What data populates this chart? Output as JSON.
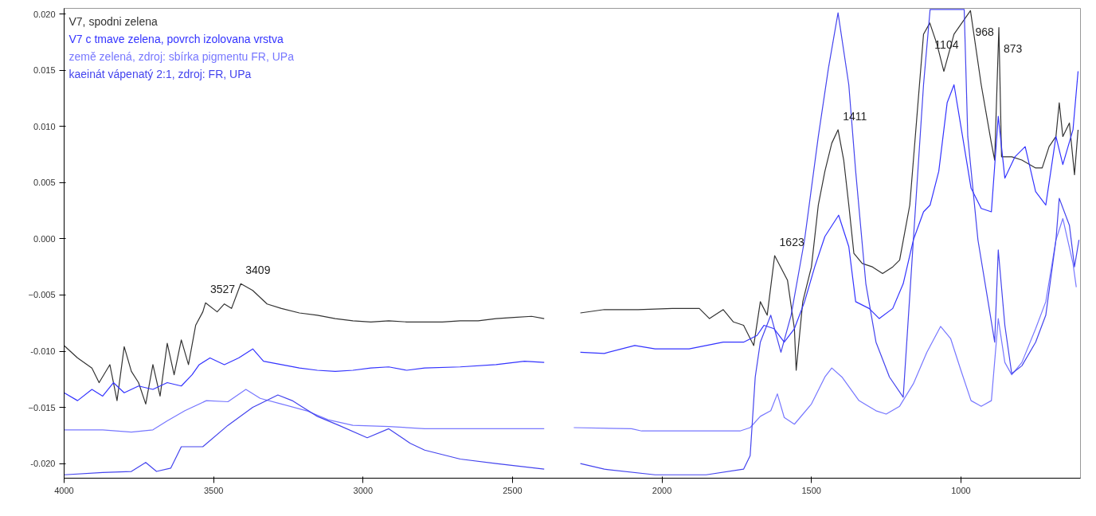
{
  "chart_data": {
    "type": "line",
    "xlim": [
      4000,
      600
    ],
    "ylim": [
      -0.0213,
      0.0205
    ],
    "xticks": [
      4000,
      3500,
      3000,
      2500,
      2000,
      1500,
      1000
    ],
    "yticks": [
      {
        "value": 0.02,
        "label": "0.020"
      },
      0.015,
      {
        "value": 0.01,
        "label": "0.010"
      },
      0.005,
      {
        "value": 0,
        "label": "0.000"
      },
      -0.005,
      {
        "value": -0.01,
        "label": "-0.010"
      },
      -0.015,
      {
        "value": -0.02,
        "label": "-0.020"
      }
    ],
    "grid": false,
    "legend": "top left",
    "marker": "none",
    "line_style": "solid",
    "series": [
      {
        "name": "V7, spodni zelena",
        "color": "#333333",
        "x": [
          4000,
          3955,
          3907,
          3883,
          3847,
          3823,
          3799,
          3775,
          3751,
          3727,
          3703,
          3679,
          3655,
          3632,
          3608,
          3584,
          3560,
          3536,
          3527,
          3488,
          3464,
          3440,
          3409,
          3369,
          3321,
          3273,
          3213,
          3153,
          3093,
          3034,
          2974,
          2914,
          2854,
          2794,
          2735,
          2675,
          2615,
          2555,
          2495,
          2436,
          2394,
          2330,
          2273,
          2193,
          2080,
          1966,
          1875,
          1841,
          1795,
          1761,
          1727,
          1693,
          1671,
          1648,
          1623,
          1580,
          1557,
          1551,
          1529,
          1500,
          1477,
          1455,
          1432,
          1411,
          1392,
          1375,
          1358,
          1330,
          1296,
          1262,
          1228,
          1205,
          1171,
          1148,
          1125,
          1104,
          1080,
          1057,
          1023,
          968,
          932,
          898,
          887,
          873,
          864,
          830,
          796,
          750,
          728,
          705,
          682,
          671,
          659,
          637,
          620,
          608
        ],
        "values": [
          -0.0095,
          -0.0106,
          -0.0115,
          -0.0128,
          -0.0112,
          -0.0144,
          -0.0096,
          -0.0118,
          -0.0128,
          -0.0147,
          -0.0112,
          -0.014,
          -0.0093,
          -0.0121,
          -0.009,
          -0.0112,
          -0.0077,
          -0.0065,
          -0.0057,
          -0.0065,
          -0.0058,
          -0.0062,
          -0.004,
          -0.0046,
          -0.0058,
          -0.0062,
          -0.0066,
          -0.0068,
          -0.0071,
          -0.0073,
          -0.0074,
          -0.0073,
          -0.0074,
          -0.0074,
          -0.0074,
          -0.0073,
          -0.0073,
          -0.0071,
          -0.007,
          -0.0069,
          -0.0071,
          null,
          -0.0066,
          -0.0063,
          -0.0063,
          -0.0062,
          -0.0062,
          -0.0071,
          -0.0063,
          -0.0074,
          -0.0077,
          -0.0095,
          -0.0056,
          -0.0068,
          -0.0015,
          -0.0037,
          -0.008,
          -0.0117,
          -0.0056,
          -0.0025,
          0.003,
          0.006,
          0.0085,
          0.0097,
          0.007,
          0.003,
          -0.0013,
          -0.0022,
          -0.0025,
          -0.0031,
          -0.0025,
          -0.0019,
          0.003,
          0.0106,
          0.0182,
          0.0192,
          0.0173,
          0.0149,
          0.0182,
          0.0203,
          0.0137,
          0.0085,
          0.007,
          0.0188,
          0.0073,
          0.0073,
          0.007,
          0.0063,
          0.0063,
          0.0082,
          0.0091,
          0.0121,
          0.0091,
          0.0103,
          0.0057,
          0.0097
        ]
      },
      {
        "name": "V7 c tmave zelena, povrch izolovana vrstva",
        "color": "#3333ff",
        "x": [
          4000,
          3955,
          3907,
          3871,
          3835,
          3799,
          3751,
          3703,
          3655,
          3608,
          3572,
          3548,
          3512,
          3464,
          3416,
          3369,
          3333,
          3273,
          3213,
          3153,
          3093,
          3034,
          2974,
          2914,
          2854,
          2794,
          2675,
          2555,
          2460,
          2394,
          2330,
          2273,
          2193,
          2091,
          2023,
          1909,
          1795,
          1727,
          1682,
          1659,
          1625,
          1591,
          1557,
          1523,
          1489,
          1455,
          1409,
          1375,
          1352,
          1307,
          1273,
          1228,
          1193,
          1159,
          1125,
          1103,
          1074,
          1046,
          1023,
          1000,
          966,
          932,
          898,
          875,
          853,
          819,
          785,
          750,
          716,
          682,
          659,
          625,
          608
        ],
        "values": [
          -0.0137,
          -0.0144,
          -0.0134,
          -0.014,
          -0.0128,
          -0.0137,
          -0.0131,
          -0.0134,
          -0.0128,
          -0.0131,
          -0.0121,
          -0.0112,
          -0.0106,
          -0.0112,
          -0.0106,
          -0.0098,
          -0.0109,
          -0.0112,
          -0.0115,
          -0.0117,
          -0.0118,
          -0.0117,
          -0.0115,
          -0.0114,
          -0.0117,
          -0.0115,
          -0.0114,
          -0.0112,
          -0.0109,
          -0.011,
          null,
          -0.0101,
          -0.0102,
          -0.0095,
          -0.0098,
          -0.0098,
          -0.0092,
          -0.0092,
          -0.0086,
          -0.0077,
          -0.008,
          -0.0092,
          -0.008,
          -0.0056,
          -0.0025,
          0.0002,
          0.0021,
          -0.0007,
          -0.0056,
          -0.0062,
          -0.0071,
          -0.0062,
          -0.004,
          -0.0001,
          0.0024,
          0.003,
          0.006,
          0.0121,
          0.0137,
          0.01,
          0.0045,
          0.0027,
          0.0024,
          0.0109,
          0.0054,
          0.0073,
          0.0082,
          0.0042,
          0.003,
          0.0091,
          0.0066,
          0.0097,
          0.0149
        ]
      },
      {
        "name": "země zelená, zdroj: sbírka pigmentu FR, UPa",
        "color": "#7777ff",
        "x": [
          4000,
          3871,
          3775,
          3703,
          3655,
          3596,
          3524,
          3452,
          3392,
          3344,
          3273,
          3189,
          3117,
          3034,
          2914,
          2794,
          2615,
          2394,
          2330,
          2295,
          2102,
          2068,
          1739,
          1705,
          1671,
          1636,
          1614,
          1591,
          1557,
          1500,
          1455,
          1432,
          1398,
          1341,
          1284,
          1250,
          1205,
          1159,
          1114,
          1068,
          1034,
          1000,
          966,
          932,
          898,
          875,
          853,
          830,
          796,
          750,
          716,
          682,
          659,
          625,
          614
        ],
        "values": [
          -0.017,
          -0.017,
          -0.0172,
          -0.017,
          -0.0162,
          -0.0153,
          -0.0144,
          -0.0145,
          -0.0134,
          -0.0142,
          -0.0147,
          -0.0153,
          -0.0161,
          -0.0166,
          -0.0167,
          -0.0169,
          -0.0169,
          -0.0169,
          null,
          -0.0168,
          -0.0169,
          -0.0171,
          -0.0171,
          -0.0168,
          -0.0158,
          -0.0153,
          -0.0138,
          -0.0159,
          -0.0165,
          -0.0147,
          -0.0123,
          -0.0115,
          -0.0123,
          -0.0144,
          -0.0153,
          -0.0156,
          -0.0149,
          -0.0129,
          -0.0101,
          -0.0078,
          -0.0089,
          -0.0117,
          -0.0144,
          -0.0149,
          -0.0144,
          -0.0071,
          -0.011,
          -0.0121,
          -0.011,
          -0.008,
          -0.0056,
          -0.0001,
          0.0018,
          -0.0022,
          -0.0043
        ]
      },
      {
        "name": "kaeinát vápenatý 2:1, zdroj: FR, UPa",
        "color": "#4444ee",
        "x": [
          4000,
          3871,
          3775,
          3727,
          3691,
          3643,
          3608,
          3536,
          3452,
          3369,
          3285,
          3237,
          3153,
          3081,
          2986,
          2914,
          2842,
          2794,
          2675,
          2555,
          2394,
          2330,
          2273,
          2193,
          2023,
          1852,
          1727,
          1705,
          1688,
          1671,
          1636,
          1602,
          1568,
          1523,
          1477,
          1443,
          1411,
          1375,
          1352,
          1318,
          1284,
          1239,
          1193,
          1159,
          1125,
          1103,
          989,
          977,
          943,
          909,
          887,
          875,
          853,
          830,
          796,
          750,
          716,
          682,
          671,
          637,
          620,
          605
        ],
        "values": [
          -0.021,
          -0.0208,
          -0.0207,
          -0.0199,
          -0.0207,
          -0.0204,
          -0.0185,
          -0.0185,
          -0.0166,
          -0.015,
          -0.0139,
          -0.0144,
          -0.0158,
          -0.0166,
          -0.0177,
          -0.0169,
          -0.0182,
          -0.0188,
          -0.0196,
          -0.02,
          -0.0205,
          null,
          -0.02,
          -0.0205,
          -0.021,
          -0.021,
          -0.0205,
          -0.0193,
          -0.0123,
          -0.0092,
          -0.0068,
          -0.0101,
          -0.0068,
          -0.0001,
          0.0091,
          0.0152,
          0.0201,
          0.0137,
          0.006,
          -0.004,
          -0.0092,
          -0.0123,
          -0.0141,
          -0.0001,
          0.0137,
          0.0204,
          0.0204,
          0.0091,
          -0.0001,
          -0.0056,
          -0.0092,
          -0.001,
          -0.0077,
          -0.012,
          -0.0113,
          -0.0092,
          -0.0068,
          -0.0001,
          0.0036,
          0.0012,
          -0.0025,
          -0.0001
        ]
      }
    ],
    "annotations": [
      {
        "text": "3527",
        "x": 3527,
        "y": -0.0057
      },
      {
        "text": "3409",
        "x": 3409,
        "y": -0.004
      },
      {
        "text": "1623",
        "x": 1623,
        "y": -0.0015
      },
      {
        "text": "1411",
        "x": 1411,
        "y": 0.0097
      },
      {
        "text": "1104",
        "x": 1104,
        "y": 0.0192
      },
      {
        "text": "968",
        "x": 968,
        "y": 0.0203
      },
      {
        "text": "873",
        "x": 873,
        "y": 0.0188
      }
    ]
  }
}
